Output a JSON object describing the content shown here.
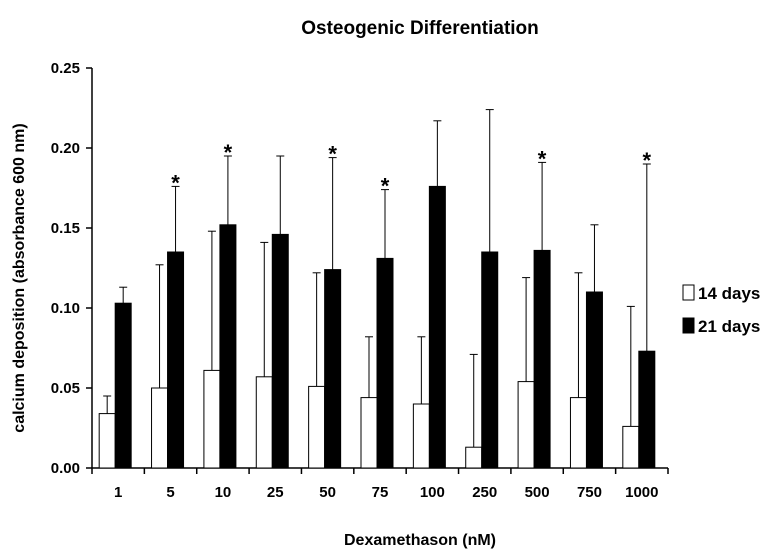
{
  "chart_data": {
    "type": "bar",
    "title": "Osteogenic Differentiation",
    "xlabel": "Dexamethason (nM)",
    "ylabel": "calcium deposition (absorbance 600 nm)",
    "ylim": [
      0,
      0.25
    ],
    "yticks": [
      "0.00",
      "0.05",
      "0.10",
      "0.15",
      "0.20",
      "0.25"
    ],
    "categories": [
      "1",
      "5",
      "10",
      "25",
      "50",
      "75",
      "100",
      "250",
      "500",
      "750",
      "1000"
    ],
    "series": [
      {
        "name": "14 days",
        "color": "#ffffff",
        "values": [
          0.034,
          0.05,
          0.061,
          0.057,
          0.051,
          0.044,
          0.04,
          0.013,
          0.054,
          0.044,
          0.026
        ],
        "error_upper": [
          0.045,
          0.127,
          0.148,
          0.141,
          0.122,
          0.082,
          0.082,
          0.071,
          0.119,
          0.122,
          0.101
        ]
      },
      {
        "name": "21 days",
        "color": "#000000",
        "values": [
          0.103,
          0.135,
          0.152,
          0.146,
          0.124,
          0.131,
          0.176,
          0.135,
          0.136,
          0.11,
          0.073
        ],
        "error_upper": [
          0.113,
          0.176,
          0.195,
          0.195,
          0.194,
          0.174,
          0.217,
          0.224,
          0.191,
          0.152,
          0.19
        ]
      }
    ],
    "significance": [
      "",
      "*",
      "*",
      "",
      "*",
      "*",
      "",
      "",
      "*",
      "",
      "*"
    ],
    "legend_position": "right",
    "grid": false
  }
}
